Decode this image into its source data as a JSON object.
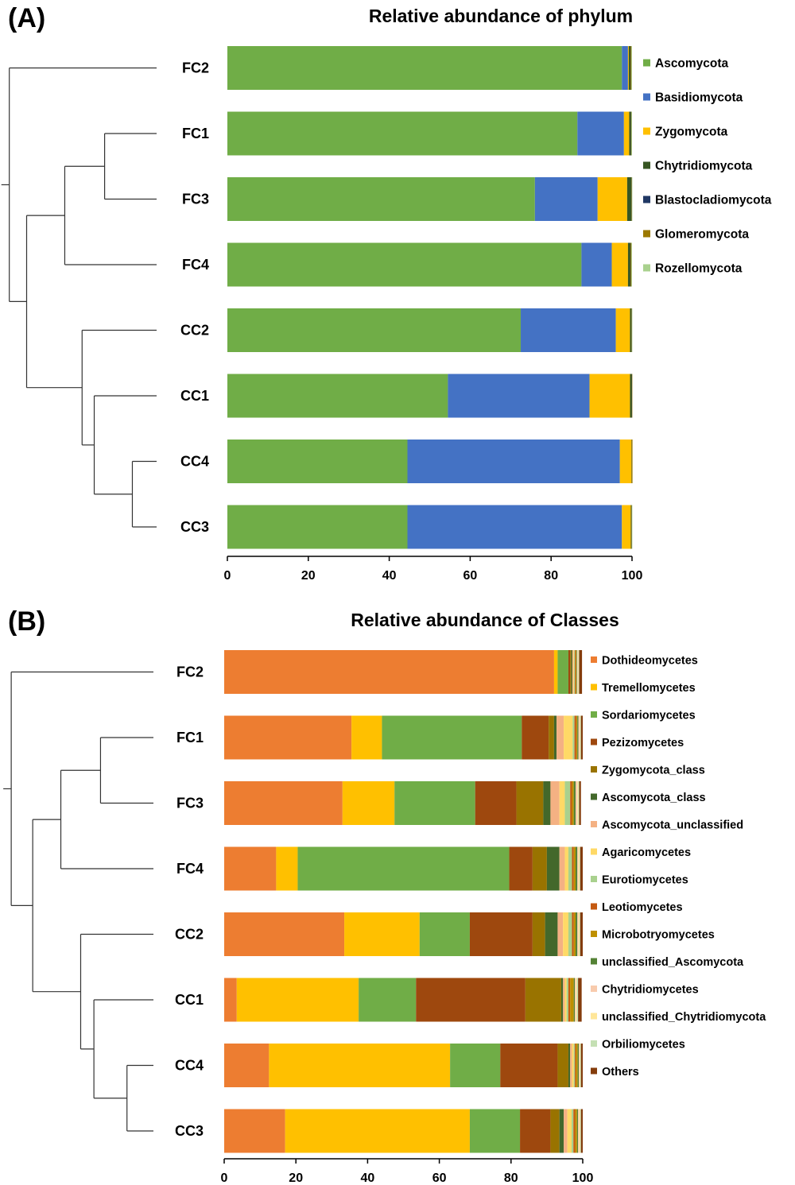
{
  "chart_data": [
    {
      "panel": "(A)",
      "type": "bar",
      "orientation": "horizontal",
      "stacked": true,
      "title": "Relative abundance of phylum",
      "xlabel": "",
      "ylabel": "",
      "xlim": [
        0,
        100
      ],
      "xticks": [
        0,
        20,
        40,
        60,
        80,
        100
      ],
      "legend_position": "right",
      "categories": [
        "FC2",
        "FC1",
        "FC3",
        "FC4",
        "CC2",
        "CC1",
        "CC4",
        "CC3"
      ],
      "series": [
        {
          "name": "Ascomycota",
          "color": "#70AD47",
          "values": [
            97.5,
            86.5,
            76.0,
            87.5,
            72.5,
            54.5,
            44.5,
            44.5
          ]
        },
        {
          "name": "Basidiomycota",
          "color": "#4472C4",
          "values": [
            1.5,
            11.5,
            15.5,
            7.5,
            23.5,
            35.0,
            52.5,
            53.0
          ]
        },
        {
          "name": "Zygomycota",
          "color": "#FFC000",
          "values": [
            0.2,
            1.3,
            7.3,
            4.0,
            3.5,
            10.0,
            2.9,
            2.2
          ]
        },
        {
          "name": "Chytridiomycota",
          "color": "#375623",
          "values": [
            0.4,
            0.4,
            1.0,
            0.6,
            0.3,
            0.4,
            0.05,
            0.1
          ]
        },
        {
          "name": "Blastocladiomycota",
          "color": "#203864",
          "values": [
            0.05,
            0.05,
            0.05,
            0.05,
            0.05,
            0.05,
            0.05,
            0.05
          ]
        },
        {
          "name": "Glomeromycota",
          "color": "#9C7900",
          "values": [
            0.2,
            0.1,
            0.1,
            0.2,
            0.1,
            0.05,
            0.05,
            0.1
          ]
        },
        {
          "name": "Rozellomycota",
          "color": "#A9D18E",
          "values": [
            0.15,
            0.15,
            0.05,
            0.15,
            0.05,
            0.0,
            0.0,
            0.05
          ]
        }
      ],
      "dendrogram": {
        "orientation": "left",
        "leaf_order": [
          "FC2",
          "FC1",
          "FC3",
          "FC4",
          "CC2",
          "CC1",
          "CC4",
          "CC3"
        ],
        "merges": [
          {
            "left": "FC1",
            "right": "FC3",
            "height": 3.0
          },
          {
            "left": "CC4",
            "right": "CC3",
            "height": 1.4
          },
          {
            "left": "FC1+FC3",
            "right": "FC4",
            "height": 5.3
          },
          {
            "left": "CC1",
            "right": "CC4+CC3",
            "height": 3.6
          },
          {
            "left": "CC2",
            "right": "CC1+CC4+CC3",
            "height": 4.3
          },
          {
            "left": "FC1+FC3+FC4",
            "right": "CC2+CC1+CC4+CC3",
            "height": 7.5
          },
          {
            "left": "FC2",
            "right": "ALL_OTHERS",
            "height": 8.5
          }
        ]
      }
    },
    {
      "panel": "(B)",
      "type": "bar",
      "orientation": "horizontal",
      "stacked": true,
      "title": "Relative abundance of Classes",
      "xlabel": "",
      "ylabel": "",
      "xlim": [
        0,
        100
      ],
      "xticks": [
        0,
        20,
        40,
        60,
        80,
        100
      ],
      "legend_position": "right",
      "categories": [
        "FC2",
        "FC1",
        "FC3",
        "FC4",
        "CC2",
        "CC1",
        "CC4",
        "CC3"
      ],
      "series": [
        {
          "name": "Dothideomycetes",
          "color": "#ED7D31",
          "values": [
            92.0,
            35.5,
            33.0,
            14.5,
            33.5,
            3.5,
            12.5,
            17.0
          ]
        },
        {
          "name": "Tremellomycetes",
          "color": "#FFC000",
          "values": [
            1.0,
            8.5,
            14.5,
            6.0,
            21.0,
            34.0,
            50.5,
            51.5
          ]
        },
        {
          "name": "Sordariomycetes",
          "color": "#70AD47",
          "values": [
            3.0,
            39.0,
            22.5,
            59.0,
            14.0,
            16.0,
            14.0,
            14.0
          ]
        },
        {
          "name": "Pezizomycetes",
          "color": "#9E480E",
          "values": [
            0.5,
            7.5,
            11.5,
            6.5,
            17.5,
            30.5,
            16.0,
            8.5
          ]
        },
        {
          "name": "Zygomycota_class",
          "color": "#997300",
          "values": [
            0.3,
            1.5,
            7.5,
            4.0,
            3.5,
            10.0,
            3.0,
            2.5
          ]
        },
        {
          "name": "Ascomycota_class",
          "color": "#43682B",
          "values": [
            0.3,
            0.7,
            2.0,
            3.5,
            3.5,
            0.5,
            0.5,
            1.2
          ]
        },
        {
          "name": "Ascomycota_unclassified",
          "color": "#F4B183",
          "values": [
            0.3,
            2.0,
            2.5,
            1.5,
            1.5,
            0.5,
            0.5,
            1.0
          ]
        },
        {
          "name": "Agaricomycetes",
          "color": "#FFD966",
          "values": [
            0.2,
            2.5,
            1.5,
            1.0,
            1.5,
            0.5,
            0.5,
            1.2
          ]
        },
        {
          "name": "Eurotiomycetes",
          "color": "#A9D18E",
          "values": [
            0.2,
            0.5,
            1.5,
            1.0,
            1.0,
            0.5,
            0.3,
            0.5
          ]
        },
        {
          "name": "Leotiomycetes",
          "color": "#C55A11",
          "values": [
            0.2,
            0.5,
            0.5,
            0.5,
            0.5,
            0.5,
            0.3,
            0.5
          ]
        },
        {
          "name": "Microbotryomycetes",
          "color": "#BF9000",
          "values": [
            0.2,
            0.3,
            0.5,
            0.5,
            0.5,
            1.0,
            0.5,
            0.5
          ]
        },
        {
          "name": "unclassified_Ascomycota",
          "color": "#548235",
          "values": [
            0.2,
            0.3,
            0.5,
            0.5,
            0.5,
            0.3,
            0.3,
            0.3
          ]
        },
        {
          "name": "Chytridiomycetes",
          "color": "#F8CBAD",
          "values": [
            0.2,
            0.3,
            0.5,
            0.3,
            0.3,
            0.3,
            0.2,
            0.3
          ]
        },
        {
          "name": "unclassified_Chytridiomycota",
          "color": "#FFE699",
          "values": [
            0.2,
            0.2,
            0.3,
            0.3,
            0.3,
            0.3,
            0.2,
            0.3
          ]
        },
        {
          "name": "Orbiliomycetes",
          "color": "#C5E0B4",
          "values": [
            0.2,
            0.2,
            0.2,
            0.2,
            0.2,
            0.3,
            0.2,
            0.2
          ]
        },
        {
          "name": "Others",
          "color": "#843C0C",
          "values": [
            0.8,
            0.5,
            0.5,
            0.7,
            0.7,
            1.0,
            0.5,
            0.5
          ]
        }
      ],
      "dendrogram": {
        "orientation": "left",
        "leaf_order": [
          "FC2",
          "FC1",
          "FC3",
          "FC4",
          "CC2",
          "CC1",
          "CC4",
          "CC3"
        ],
        "merges": [
          {
            "left": "FC1",
            "right": "FC3",
            "height": 3.2
          },
          {
            "left": "CC4",
            "right": "CC3",
            "height": 1.6
          },
          {
            "left": "FC1+FC3",
            "right": "FC4",
            "height": 5.6
          },
          {
            "left": "CC1",
            "right": "CC4+CC3",
            "height": 3.6
          },
          {
            "left": "CC2",
            "right": "CC1+CC4+CC3",
            "height": 4.4
          },
          {
            "left": "FC1+FC3+FC4",
            "right": "CC2+CC1+CC4+CC3",
            "height": 7.3
          },
          {
            "left": "FC2",
            "right": "ALL_OTHERS",
            "height": 8.6
          }
        ]
      }
    }
  ]
}
